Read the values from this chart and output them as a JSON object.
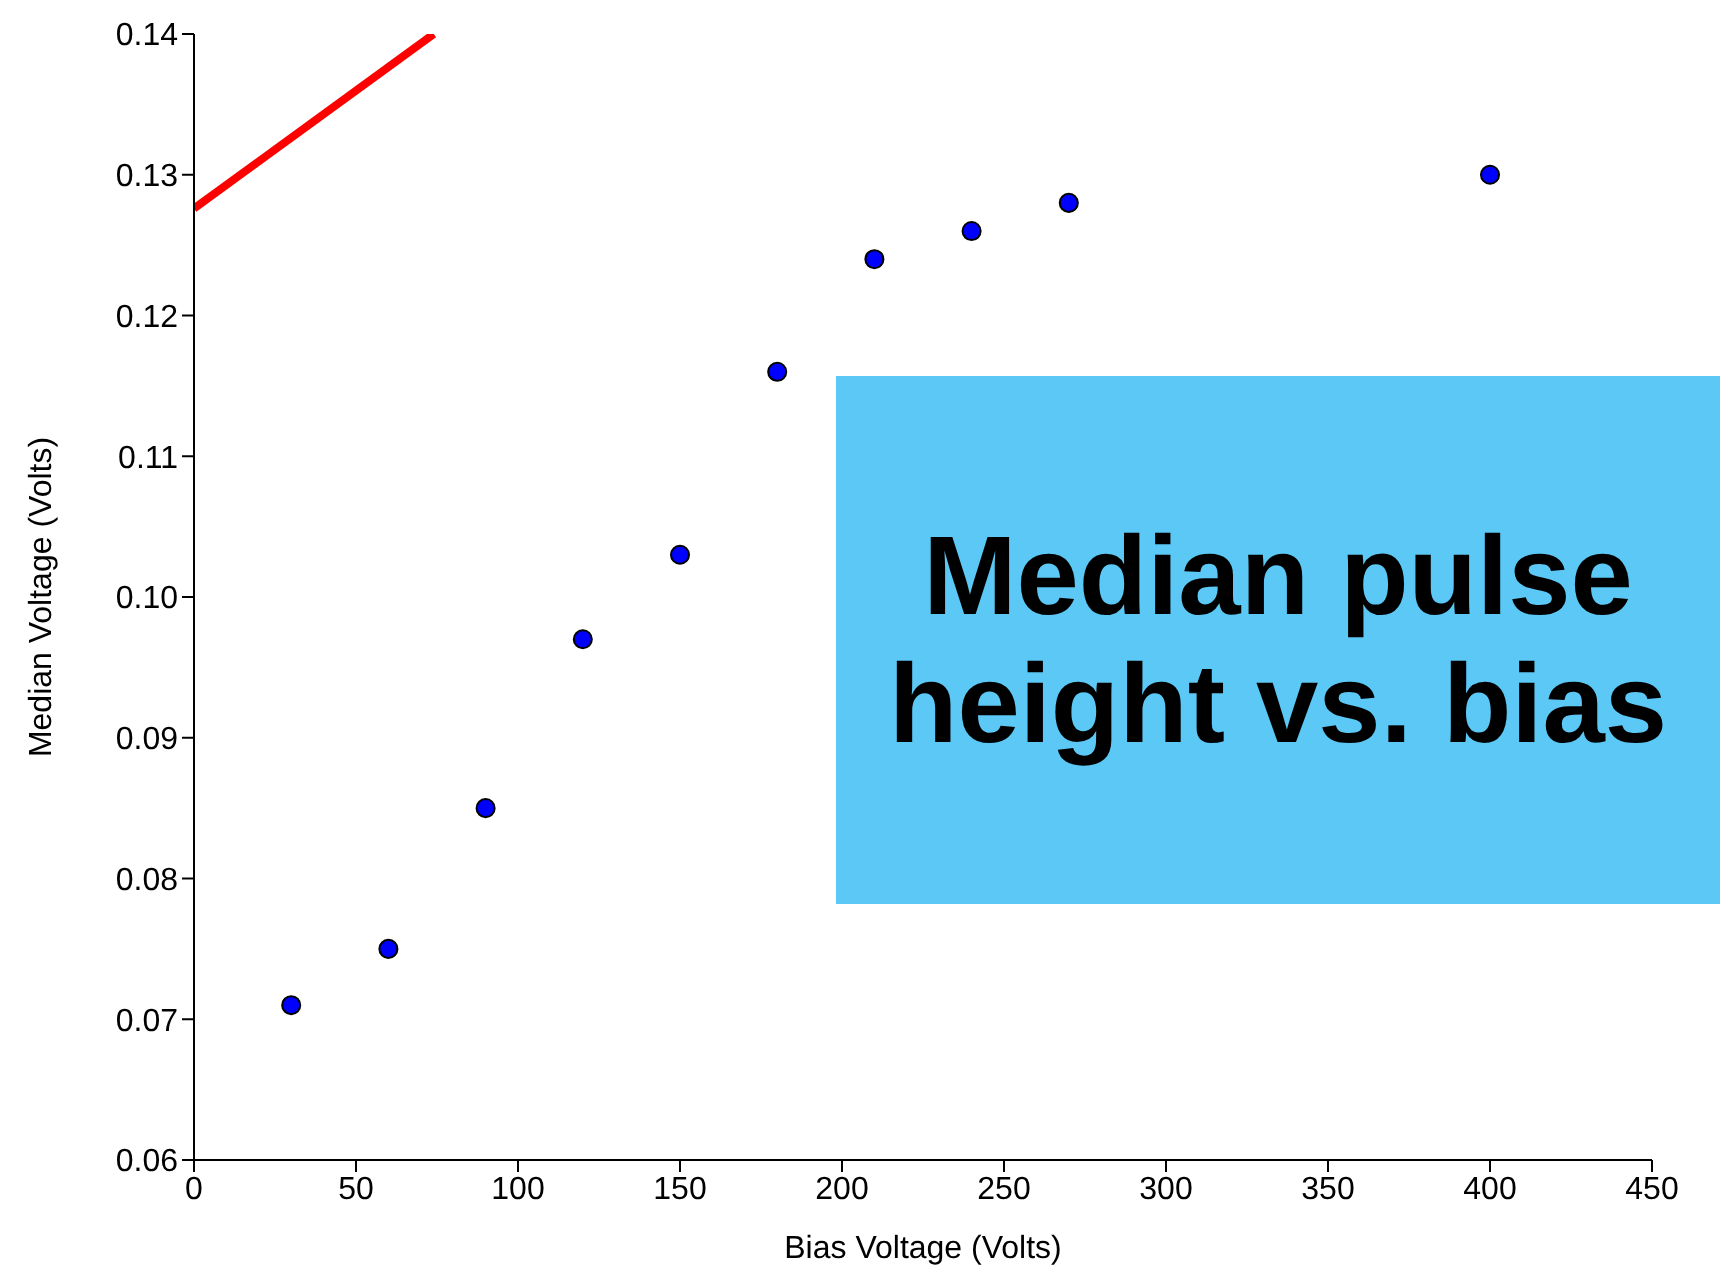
{
  "chart_data": {
    "type": "scatter",
    "title": "Median pulse height vs. bias",
    "xlabel": "Bias Voltage (Volts)",
    "ylabel": "Median Voltage (Volts)",
    "series": [
      {
        "color": "#0000ff",
        "marker": "circle",
        "x": [
          30,
          60,
          90,
          120,
          150,
          180,
          210,
          240,
          270,
          400
        ],
        "values": [
          0.071,
          0.075,
          0.085,
          0.097,
          0.103,
          0.116,
          0.124,
          0.126,
          0.128,
          0.13
        ]
      },
      {
        "type": "line",
        "color": "#ff0000",
        "marker": "none",
        "x": [
          0,
          74
        ],
        "values": [
          0.1276,
          0.14
        ]
      }
    ],
    "xlim": [
      0,
      450
    ],
    "xticks": [
      0,
      50,
      100,
      150,
      200,
      250,
      300,
      350,
      400,
      450
    ],
    "ylim": [
      0.06,
      0.14
    ],
    "yticks": [
      0.06,
      0.07,
      0.08,
      0.09,
      {
        "value": 0.1,
        "label": "0.10"
      },
      0.11,
      0.12,
      0.13,
      0.14
    ],
    "grid": false,
    "legend": false
  }
}
